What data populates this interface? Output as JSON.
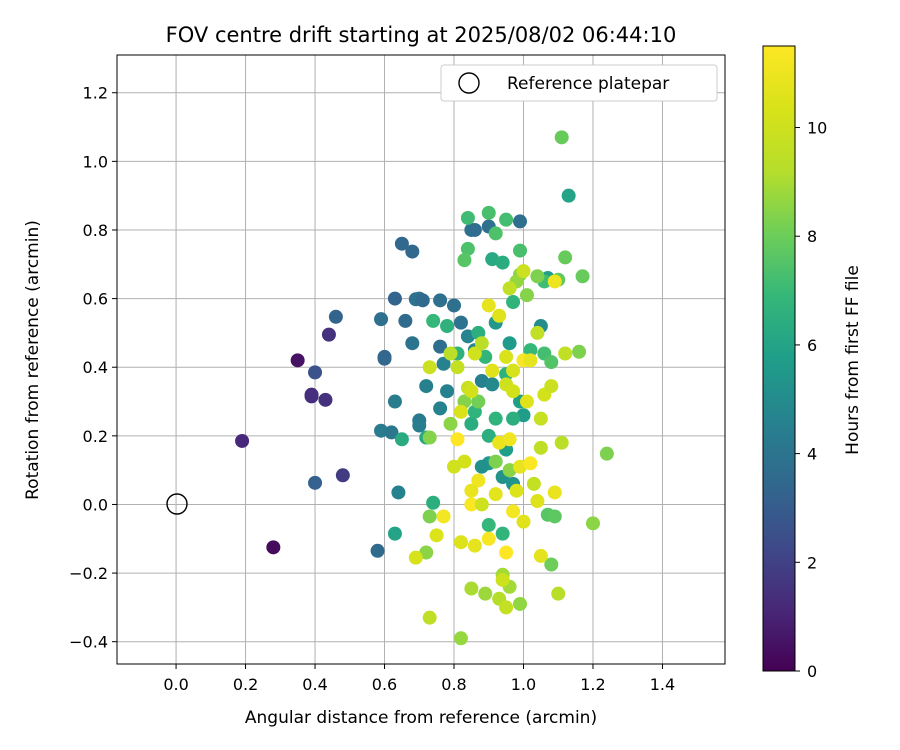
{
  "chart_data": {
    "type": "scatter",
    "title": "FOV centre drift starting at 2025/08/02 06:44:10",
    "xlabel": "Angular distance from reference (arcmin)",
    "ylabel": "Rotation from reference (arcmin)",
    "xlim": [
      -0.17,
      1.58
    ],
    "ylim": [
      -0.465,
      1.31
    ],
    "xticks": [
      0.0,
      0.2,
      0.4,
      0.6,
      0.8,
      1.0,
      1.2,
      1.4
    ],
    "xtick_labels": [
      "0.0",
      "0.2",
      "0.4",
      "0.6",
      "0.8",
      "1.0",
      "1.2",
      "1.4"
    ],
    "yticks": [
      -0.4,
      -0.2,
      0.0,
      0.2,
      0.4,
      0.6,
      0.8,
      1.0,
      1.2
    ],
    "ytick_labels": [
      "−0.4",
      "−0.2",
      "0.0",
      "0.2",
      "0.4",
      "0.6",
      "0.8",
      "1.0",
      "1.2"
    ],
    "grid": true,
    "legend": {
      "label": "Reference platepar",
      "position": "top-right",
      "marker": "open-circle"
    },
    "reference_point": {
      "x": 0.0,
      "y": 0.0
    },
    "colorbar": {
      "label": "Hours from first FF file",
      "colormap": "viridis",
      "range": [
        0,
        11.5
      ],
      "ticks": [
        0,
        2,
        4,
        6,
        8,
        10
      ],
      "tick_labels": [
        "0",
        "2",
        "4",
        "6",
        "8",
        "10"
      ]
    },
    "series": [
      {
        "points": [
          [
            0.28,
            -0.125,
            0.3
          ],
          [
            0.35,
            0.42,
            0.5
          ],
          [
            0.19,
            0.185,
            1.2
          ],
          [
            0.39,
            0.32,
            1.4
          ],
          [
            0.39,
            0.315,
            1.4
          ],
          [
            0.43,
            0.305,
            1.5
          ],
          [
            0.44,
            0.495,
            1.5
          ],
          [
            0.48,
            0.085,
            1.8
          ],
          [
            0.4,
            0.385,
            2.6
          ],
          [
            0.4,
            0.063,
            3.2
          ],
          [
            0.46,
            0.547,
            3.3
          ],
          [
            0.58,
            -0.135,
            3.6
          ],
          [
            0.59,
            0.54,
            3.8
          ],
          [
            0.6,
            0.43,
            3.4
          ],
          [
            0.6,
            0.425,
            3.4
          ],
          [
            0.63,
            0.6,
            3.3
          ],
          [
            0.65,
            0.76,
            3.4
          ],
          [
            0.68,
            0.737,
            3.5
          ],
          [
            0.66,
            0.535,
            3.6
          ],
          [
            0.64,
            0.035,
            4.6
          ],
          [
            0.63,
            0.3,
            4.3
          ],
          [
            0.59,
            0.215,
            4.3
          ],
          [
            0.62,
            0.21,
            4.1
          ],
          [
            0.69,
            0.598,
            3.9
          ],
          [
            0.7,
            0.6,
            3.9
          ],
          [
            0.68,
            0.47,
            4.0
          ],
          [
            0.71,
            0.595,
            3.6
          ],
          [
            0.72,
            0.345,
            4.5
          ],
          [
            0.7,
            0.245,
            4.2
          ],
          [
            0.7,
            0.23,
            4.4
          ],
          [
            0.76,
            0.595,
            3.8
          ],
          [
            0.8,
            0.58,
            3.8
          ],
          [
            0.76,
            0.46,
            3.7
          ],
          [
            0.77,
            0.41,
            4.6
          ],
          [
            0.76,
            0.28,
            4.6
          ],
          [
            0.78,
            0.33,
            4.5
          ],
          [
            0.85,
            0.8,
            3.8
          ],
          [
            0.86,
            0.8,
            3.7
          ],
          [
            0.9,
            0.81,
            3.8
          ],
          [
            0.99,
            0.825,
            3.8
          ],
          [
            0.82,
            0.53,
            3.9
          ],
          [
            0.84,
            0.49,
            4.7
          ],
          [
            0.86,
            0.45,
            4.8
          ],
          [
            0.88,
            0.36,
            4.5
          ],
          [
            0.91,
            0.35,
            4.9
          ],
          [
            0.9,
            0.12,
            5.5
          ],
          [
            0.88,
            0.11,
            5.2
          ],
          [
            0.95,
            0.16,
            5.8
          ],
          [
            0.94,
            0.08,
            5.3
          ],
          [
            0.97,
            0.06,
            5.4
          ],
          [
            0.92,
            0.53,
            5.5
          ],
          [
            0.96,
            0.47,
            5.6
          ],
          [
            0.99,
            0.3,
            5.8
          ],
          [
            1.0,
            0.26,
            5.7
          ],
          [
            1.05,
            0.52,
            5.0
          ],
          [
            1.07,
            0.66,
            5.8
          ],
          [
            1.13,
            0.9,
            6.0
          ],
          [
            0.91,
            0.715,
            6.2
          ],
          [
            0.94,
            0.705,
            6.4
          ],
          [
            0.65,
            0.19,
            6.3
          ],
          [
            0.63,
            -0.085,
            6.0
          ],
          [
            0.72,
            0.195,
            6.2
          ],
          [
            0.74,
            0.005,
            6.5
          ],
          [
            0.78,
            0.52,
            6.6
          ],
          [
            0.74,
            0.535,
            6.9
          ],
          [
            0.81,
            0.44,
            6.6
          ],
          [
            0.87,
            0.5,
            6.5
          ],
          [
            0.89,
            0.43,
            6.8
          ],
          [
            0.85,
            0.235,
            6.4
          ],
          [
            0.86,
            0.27,
            6.7
          ],
          [
            0.9,
            0.2,
            6.5
          ],
          [
            0.92,
            0.25,
            6.7
          ],
          [
            0.97,
            0.25,
            6.5
          ],
          [
            0.9,
            -0.06,
            6.9
          ],
          [
            0.94,
            -0.085,
            6.7
          ],
          [
            0.95,
            0.38,
            6.6
          ],
          [
            0.97,
            0.59,
            6.7
          ],
          [
            1.02,
            0.45,
            6.9
          ],
          [
            0.84,
            0.835,
            7.1
          ],
          [
            0.9,
            0.85,
            7.3
          ],
          [
            0.95,
            0.83,
            7.2
          ],
          [
            0.99,
            0.74,
            7.3
          ],
          [
            0.92,
            0.79,
            7.4
          ],
          [
            0.84,
            0.745,
            7.4
          ],
          [
            0.83,
            0.712,
            7.6
          ],
          [
            1.06,
            0.65,
            7.1
          ],
          [
            1.06,
            0.44,
            7.2
          ],
          [
            1.08,
            0.415,
            7.5
          ],
          [
            1.1,
            0.655,
            7.8
          ],
          [
            1.12,
            0.72,
            7.9
          ],
          [
            1.17,
            0.665,
            7.9
          ],
          [
            1.11,
            1.07,
            7.9
          ],
          [
            1.07,
            -0.03,
            7.6
          ],
          [
            1.09,
            -0.035,
            7.7
          ],
          [
            1.08,
            -0.175,
            8.0
          ],
          [
            1.04,
            0.665,
            8.3
          ],
          [
            0.99,
            0.67,
            8.4
          ],
          [
            1.01,
            0.61,
            8.4
          ],
          [
            0.98,
            0.65,
            8.7
          ],
          [
            1.16,
            0.445,
            8.3
          ],
          [
            1.24,
            0.148,
            8.3
          ],
          [
            1.2,
            -0.055,
            8.5
          ],
          [
            0.96,
            0.1,
            8.5
          ],
          [
            0.92,
            0.125,
            8.3
          ],
          [
            0.87,
            0.3,
            8.1
          ],
          [
            0.83,
            0.3,
            8.4
          ],
          [
            0.79,
            0.235,
            8.5
          ],
          [
            0.73,
            0.195,
            8.4
          ],
          [
            0.73,
            -0.035,
            8.3
          ],
          [
            0.72,
            -0.14,
            8.5
          ],
          [
            0.82,
            -0.39,
            8.7
          ],
          [
            0.89,
            -0.26,
            8.8
          ],
          [
            0.96,
            -0.24,
            8.9
          ],
          [
            0.99,
            -0.29,
            8.6
          ],
          [
            0.94,
            -0.205,
            8.9
          ],
          [
            0.85,
            -0.245,
            9.0
          ],
          [
            0.93,
            -0.275,
            9.2
          ],
          [
            1.1,
            -0.26,
            9.3
          ],
          [
            0.73,
            -0.33,
            9.5
          ],
          [
            0.95,
            -0.3,
            9.7
          ],
          [
            0.94,
            -0.22,
            10.0
          ],
          [
            0.79,
            0.44,
            9.4
          ],
          [
            0.81,
            0.4,
            9.7
          ],
          [
            0.73,
            0.4,
            9.9
          ],
          [
            0.84,
            0.34,
            9.8
          ],
          [
            0.85,
            0.33,
            10.2
          ],
          [
            0.82,
            0.27,
            10.4
          ],
          [
            0.86,
            0.44,
            10.1
          ],
          [
            0.88,
            0.47,
            9.4
          ],
          [
            0.9,
            0.58,
            10.8
          ],
          [
            0.93,
            0.55,
            10.6
          ],
          [
            0.96,
            0.63,
            9.6
          ],
          [
            1.0,
            0.68,
            9.9
          ],
          [
            1.04,
            0.5,
            9.6
          ],
          [
            1.06,
            0.32,
            10.2
          ],
          [
            1.08,
            0.345,
            9.9
          ],
          [
            1.11,
            0.18,
            9.4
          ],
          [
            1.12,
            0.44,
            9.6
          ],
          [
            1.05,
            0.25,
            9.8
          ],
          [
            1.05,
            0.165,
            9.5
          ],
          [
            1.03,
            0.06,
            9.7
          ],
          [
            1.04,
            0.01,
            10.5
          ],
          [
            1.05,
            -0.15,
            10.7
          ],
          [
            1.09,
            0.035,
            10.9
          ],
          [
            1.09,
            0.65,
            11.0
          ],
          [
            1.0,
            0.42,
            11.3
          ],
          [
            1.02,
            0.42,
            10.8
          ],
          [
            0.95,
            0.43,
            10.4
          ],
          [
            0.97,
            0.39,
            10.3
          ],
          [
            0.91,
            0.39,
            10.6
          ],
          [
            0.95,
            0.35,
            10.0
          ],
          [
            0.97,
            0.33,
            10.2
          ],
          [
            1.01,
            0.3,
            10.6
          ],
          [
            0.93,
            0.18,
            10.9
          ],
          [
            0.96,
            0.19,
            11.1
          ],
          [
            0.99,
            0.11,
            10.8
          ],
          [
            1.02,
            0.12,
            11.4
          ],
          [
            0.98,
            0.04,
            10.5
          ],
          [
            0.92,
            0.03,
            10.7
          ],
          [
            0.87,
            0.07,
            11.1
          ],
          [
            0.85,
            0.04,
            10.9
          ],
          [
            0.83,
            0.125,
            10.2
          ],
          [
            0.81,
            0.19,
            11.5
          ],
          [
            0.8,
            0.11,
            10.1
          ],
          [
            0.82,
            -0.11,
            10.5
          ],
          [
            0.86,
            -0.12,
            10.8
          ],
          [
            0.9,
            -0.1,
            11.3
          ],
          [
            0.95,
            -0.14,
            11.5
          ],
          [
            0.97,
            -0.02,
            11.2
          ],
          [
            1.0,
            -0.05,
            10.6
          ],
          [
            0.77,
            -0.035,
            11.2
          ],
          [
            0.75,
            -0.09,
            10.5
          ],
          [
            0.69,
            -0.155,
            10.3
          ],
          [
            0.85,
            0.0,
            11.4
          ],
          [
            0.88,
            0.0,
            10.0
          ]
        ]
      }
    ]
  }
}
